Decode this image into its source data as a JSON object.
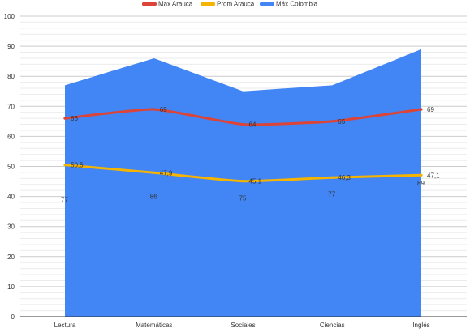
{
  "chart_data": {
    "type": "line",
    "categories": [
      "Lectura",
      "Matemáticas",
      "Sociales",
      "Ciencias",
      "Inglés"
    ],
    "ylim": [
      0,
      100
    ],
    "ymajor": 10,
    "yminor": 2,
    "legend_position": "top",
    "series": [
      {
        "name": "Máx Arauca",
        "kind": "line",
        "color": "#db4437",
        "values": [
          66,
          69,
          64,
          65,
          69
        ],
        "labels": [
          "66",
          "69",
          "64",
          "65",
          "69"
        ]
      },
      {
        "name": "Prom Arauca",
        "kind": "line",
        "color": "#f4b400",
        "values": [
          50.5,
          47.9,
          45.1,
          46.3,
          47.1
        ],
        "labels": [
          "50,5",
          "47,9",
          "45,1",
          "46,3",
          "47,1"
        ]
      },
      {
        "name": "Máx Colombia",
        "kind": "area",
        "color": "#4285f4",
        "values": [
          77,
          86,
          75,
          77,
          89
        ],
        "labels": [
          "77",
          "86",
          "75",
          "77",
          "89"
        ]
      }
    ],
    "yticks": [
      "0",
      "10",
      "20",
      "30",
      "40",
      "50",
      "60",
      "70",
      "80",
      "90",
      "100"
    ]
  }
}
